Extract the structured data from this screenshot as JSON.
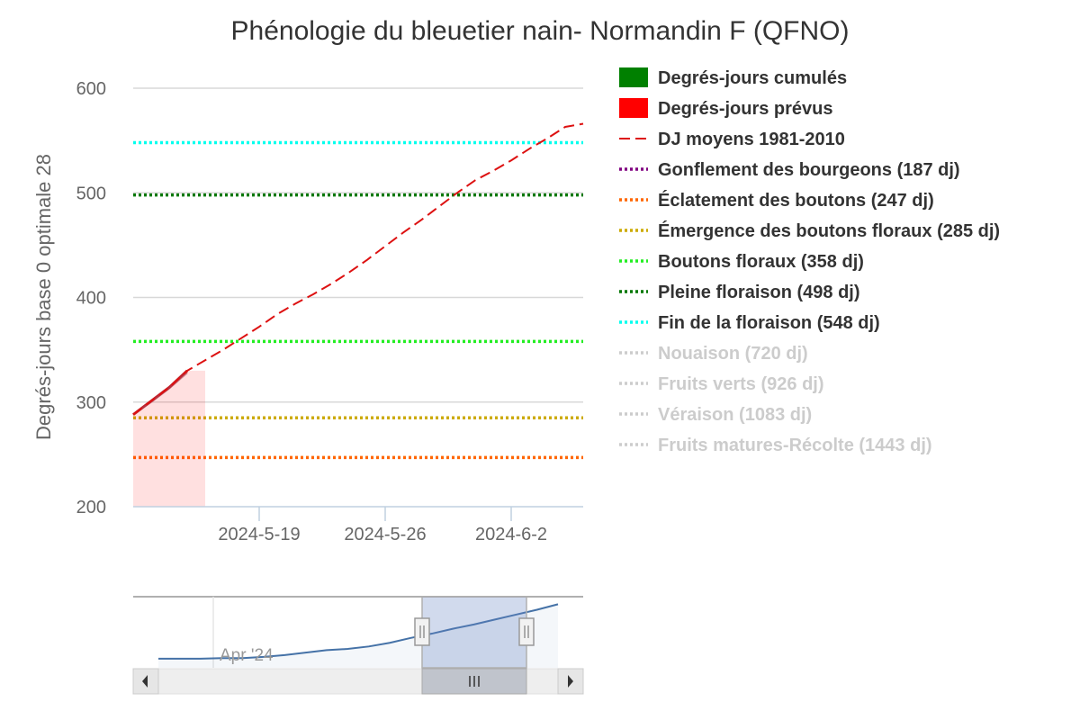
{
  "chart_data": {
    "type": "line",
    "title": "Phénologie du bleuetier nain- Normandin F (QFNO)",
    "ylabel": "Degrés-jours base 0 optimale 28",
    "xlabel": "",
    "xlim": [
      "2024-05-12",
      "2024-06-06"
    ],
    "ylim": [
      200,
      600
    ],
    "yticks": [
      200,
      300,
      400,
      500,
      600
    ],
    "xticks": [
      {
        "date": "2024-05-19",
        "label": "2024-5-19"
      },
      {
        "date": "2024-05-26",
        "label": "2024-5-26"
      },
      {
        "date": "2024-06-02",
        "label": "2024-6-2"
      }
    ],
    "grid": true,
    "legend_position": "right",
    "series": [
      {
        "name": "Degrés-jours cumulés",
        "kind": "area",
        "color": "#008000",
        "x": [
          "2024-05-12",
          "2024-05-13",
          "2024-05-14",
          "2024-05-15",
          "2024-05-16"
        ],
        "y": [
          288,
          300,
          313,
          328,
          328
        ]
      },
      {
        "name": "Degrés-jours prévus",
        "kind": "area",
        "color": "#ff0000",
        "x": [
          "2024-05-12",
          "2024-05-13",
          "2024-05-14",
          "2024-05-15",
          "2024-05-16"
        ],
        "y": [
          288,
          301,
          314,
          330,
          330
        ]
      },
      {
        "name": "DJ moyens 1981-2010",
        "kind": "dashed-line",
        "color": "#dd1111",
        "x": [
          "2024-05-12",
          "2024-05-13",
          "2024-05-14",
          "2024-05-15",
          "2024-05-16",
          "2024-05-17",
          "2024-05-18",
          "2024-05-19",
          "2024-05-20",
          "2024-05-21",
          "2024-05-22",
          "2024-05-23",
          "2024-05-24",
          "2024-05-25",
          "2024-05-26",
          "2024-05-27",
          "2024-05-28",
          "2024-05-29",
          "2024-05-30",
          "2024-05-31",
          "2024-06-01",
          "2024-06-02",
          "2024-06-03",
          "2024-06-04",
          "2024-06-05",
          "2024-06-06"
        ],
        "y": [
          288,
          301,
          314,
          330,
          340,
          350,
          361,
          372,
          384,
          394,
          403,
          413,
          424,
          436,
          449,
          462,
          474,
          487,
          500,
          512,
          521,
          531,
          542,
          552,
          563,
          566
        ]
      }
    ],
    "thresholds": [
      {
        "name": "Gonflement des bourgeons (187 dj)",
        "value": 187,
        "color": "#800080",
        "visible": true
      },
      {
        "name": "Éclatement des boutons (247 dj)",
        "value": 247,
        "color": "#ff6600",
        "visible": true
      },
      {
        "name": "Émergence des boutons floraux (285 dj)",
        "value": 285,
        "color": "#ccaa00",
        "visible": true
      },
      {
        "name": "Boutons floraux (358 dj)",
        "value": 358,
        "color": "#22ee22",
        "visible": true
      },
      {
        "name": "Pleine floraison (498 dj)",
        "value": 498,
        "color": "#007700",
        "visible": true
      },
      {
        "name": "Fin de la floraison (548 dj)",
        "value": 548,
        "color": "#00ffee",
        "visible": true
      },
      {
        "name": "Nouaison (720 dj)",
        "value": 720,
        "color": "#cccccc",
        "visible": false
      },
      {
        "name": "Fruits verts (926 dj)",
        "value": 926,
        "color": "#cccccc",
        "visible": false
      },
      {
        "name": "Véraison (1083 dj)",
        "value": 1083,
        "color": "#cccccc",
        "visible": false
      },
      {
        "name": "Fruits matures-Récolte (1443 dj)",
        "value": 1443,
        "color": "#cccccc",
        "visible": false
      }
    ],
    "navigator": {
      "label": "Apr '24",
      "series_color": "#4572a7",
      "values": [
        0.06,
        0.06,
        0.06,
        0.07,
        0.07,
        0.09,
        0.12,
        0.16,
        0.2,
        0.22,
        0.26,
        0.32,
        0.4,
        0.47,
        0.55,
        0.62,
        0.7,
        0.78,
        0.86,
        0.95
      ],
      "selection": {
        "from": 0.65,
        "to": 0.88
      }
    }
  }
}
